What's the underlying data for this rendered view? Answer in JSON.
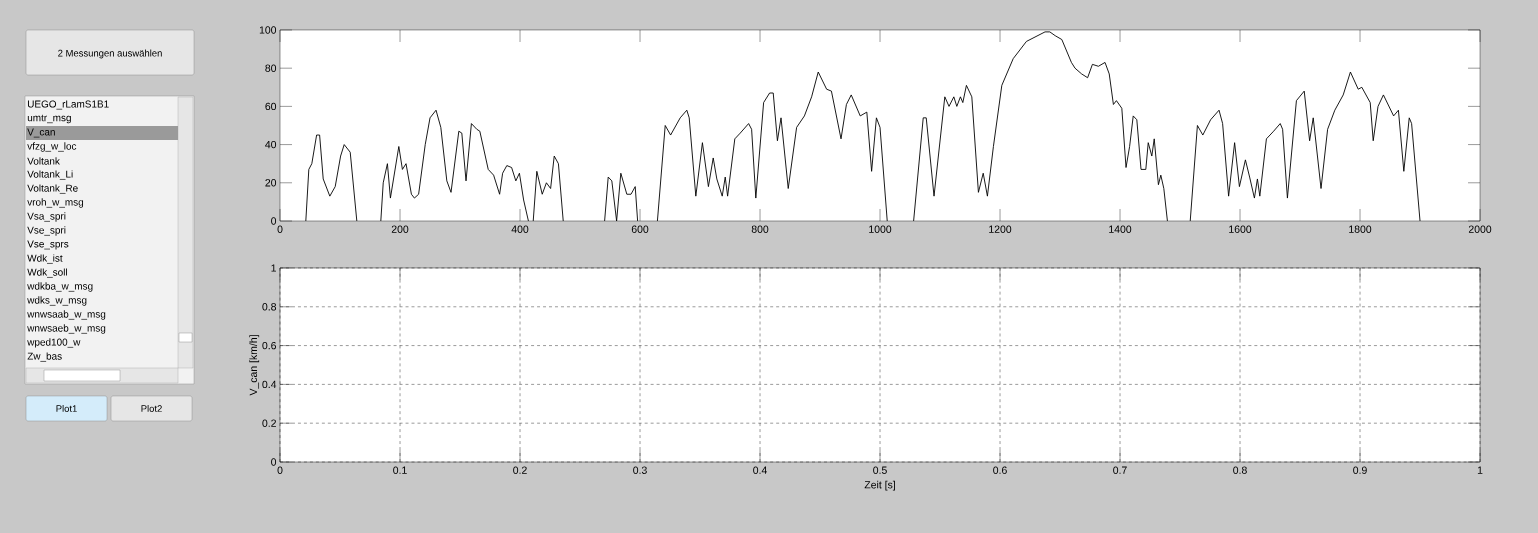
{
  "chart_data": [
    {
      "type": "other",
      "annotations": [
        "2 Messungen auswählen",
        "UEGO_rLamS1B1",
        "umtr_msg",
        "V_can",
        "vfzg_w_loc",
        "Voltank",
        "Voltank_Li",
        "Voltank_Re",
        "vroh_w_msg",
        "Vsa_spri",
        "Vse_spri",
        "Vse_sprs",
        "Wdk_ist",
        "Wdk_soll",
        "wdkba_w_msg",
        "wdks_w_msg",
        "wnwsaab_w_msg",
        "wnwsaeb_w_msg",
        "wped100_w",
        "Zw_bas",
        "Plot1",
        "Plot2"
      ]
    },
    {
      "type": "line",
      "xlim": [
        0,
        2000
      ],
      "ylim": [
        0,
        100
      ],
      "xticks": [
        0,
        200,
        400,
        600,
        800,
        1000,
        1200,
        1400,
        1600,
        1800,
        2000
      ],
      "yticks": [
        0,
        20,
        40,
        60,
        80,
        100
      ],
      "x": [
        43,
        48,
        53,
        61,
        66,
        72,
        83,
        92,
        101,
        107,
        117,
        128,
        148,
        168,
        172,
        179,
        184,
        198,
        204,
        210,
        219,
        224,
        231,
        242,
        250,
        260,
        268,
        278,
        285,
        298,
        303,
        310,
        319,
        328,
        333,
        347,
        356,
        366,
        371,
        378,
        386,
        393,
        399,
        406,
        414,
        418,
        422,
        428,
        437,
        444,
        451,
        457,
        464,
        472,
        505,
        541,
        547,
        553,
        561,
        568,
        578,
        585,
        592,
        596,
        612,
        629,
        642,
        651,
        667,
        678,
        682,
        693,
        704,
        714,
        722,
        728,
        737,
        742,
        746,
        758,
        767,
        781,
        786,
        793,
        806,
        816,
        822,
        829,
        835,
        847,
        861,
        874,
        886,
        897,
        911,
        919,
        935,
        944,
        952,
        967,
        978,
        986,
        994,
        1000,
        1012,
        1034,
        1056,
        1072,
        1077,
        1090,
        1108,
        1115,
        1123,
        1128,
        1134,
        1138,
        1144,
        1153,
        1164,
        1172,
        1179,
        1189,
        1203,
        1222,
        1244,
        1275,
        1283,
        1292,
        1303,
        1319,
        1325,
        1336,
        1346,
        1354,
        1364,
        1375,
        1382,
        1389,
        1394,
        1403,
        1410,
        1416,
        1422,
        1428,
        1435,
        1443,
        1447,
        1453,
        1457,
        1464,
        1468,
        1473,
        1479,
        1498,
        1517,
        1529,
        1538,
        1551,
        1565,
        1571,
        1581,
        1591,
        1599,
        1609,
        1616,
        1624,
        1629,
        1633,
        1644,
        1656,
        1667,
        1671,
        1679,
        1694,
        1707,
        1716,
        1722,
        1735,
        1746,
        1758,
        1772,
        1784,
        1797,
        1803,
        1817,
        1822,
        1830,
        1839,
        1856,
        1864,
        1873,
        1882,
        1886,
        1900
      ],
      "series": [
        {
          "color": "#000000",
          "values": [
            0,
            27,
            30,
            45,
            45,
            22,
            13,
            18,
            34,
            40,
            36,
            0,
            null,
            0,
            20,
            30,
            12,
            39,
            27,
            30,
            14,
            12,
            14,
            40,
            54,
            58,
            49,
            21,
            15,
            47,
            46,
            21,
            51,
            48,
            47,
            27,
            24,
            14,
            25,
            29,
            28,
            21,
            25,
            11,
            0,
            null,
            0,
            26,
            14,
            20,
            17,
            34,
            30,
            0,
            null,
            0,
            23,
            21,
            0,
            25,
            14,
            14,
            18,
            0,
            null,
            0,
            50,
            45,
            54,
            58,
            54,
            13,
            41,
            18,
            33,
            22,
            13,
            23,
            13,
            43,
            46,
            51,
            48,
            12,
            62,
            67,
            67,
            42,
            54,
            17,
            49,
            55,
            65,
            78,
            69,
            68,
            43,
            61,
            66,
            55,
            57,
            26,
            54,
            49,
            0,
            null,
            0,
            54,
            54,
            13,
            65,
            60,
            65,
            60,
            65,
            62,
            71,
            65,
            15,
            25,
            13,
            39,
            71,
            85,
            94,
            99,
            99,
            97,
            95,
            83,
            80,
            77,
            75,
            82,
            81,
            83,
            77,
            61,
            63,
            59,
            28,
            39,
            55,
            53,
            27,
            27,
            41,
            34,
            43,
            19,
            24,
            17,
            0,
            null,
            0,
            50,
            45,
            53,
            58,
            51,
            13,
            41,
            18,
            32,
            23,
            12,
            22,
            13,
            43,
            47,
            51,
            48,
            12,
            63,
            68,
            42,
            54,
            17,
            48,
            58,
            66,
            78,
            69,
            70,
            62,
            42,
            60,
            66,
            55,
            58,
            26,
            54,
            51,
            0
          ]
        }
      ]
    },
    {
      "type": "line",
      "xlim": [
        0,
        1
      ],
      "ylim": [
        0,
        1
      ],
      "xticks": [
        0,
        0.1,
        0.2,
        0.3,
        0.4,
        0.5,
        0.6,
        0.7,
        0.8,
        0.9,
        1
      ],
      "yticks": [
        0,
        0.2,
        0.4,
        0.6,
        0.8,
        1
      ],
      "grid": true,
      "xlabel": "Zeit [s]",
      "ylabel": "V_can  [km/h]"
    }
  ]
}
